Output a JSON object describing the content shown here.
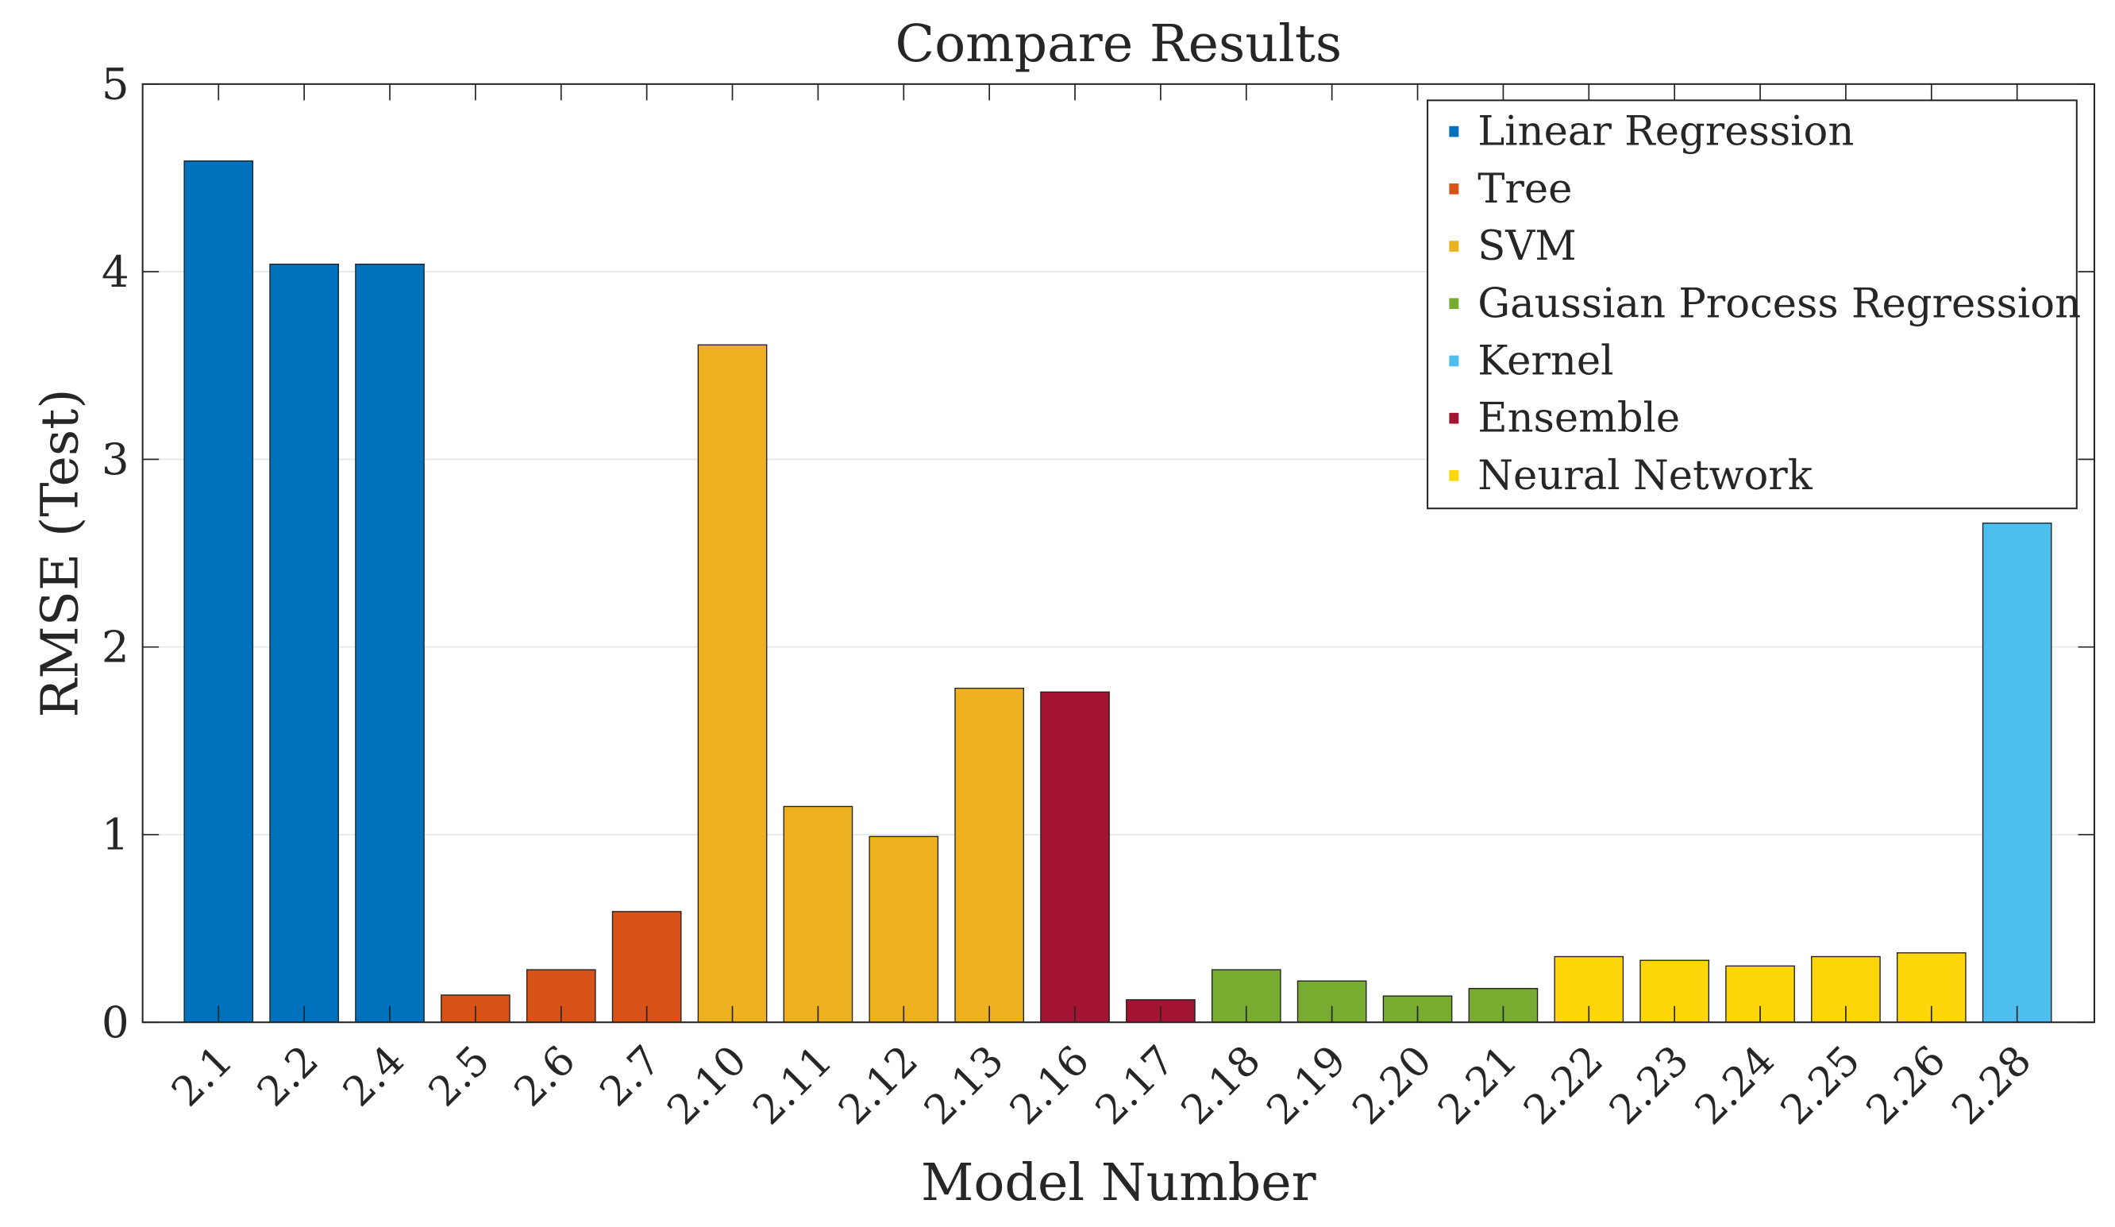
{
  "chart_data": {
    "type": "bar",
    "title": "Compare Results",
    "xlabel": "Model Number",
    "ylabel": "RMSE (Test)",
    "ylim": [
      0,
      5
    ],
    "yticks": [
      "0",
      "1",
      "2",
      "3",
      "4",
      "5"
    ],
    "grid": "y",
    "legend_placement": "top-right",
    "categories": [
      "2.1",
      "2.2",
      "2.4",
      "2.5",
      "2.6",
      "2.7",
      "2.10",
      "2.11",
      "2.12",
      "2.13",
      "2.16",
      "2.17",
      "2.18",
      "2.19",
      "2.20",
      "2.21",
      "2.22",
      "2.23",
      "2.24",
      "2.25",
      "2.26",
      "2.28"
    ],
    "values": [
      4.59,
      4.04,
      4.04,
      0.145,
      0.28,
      0.59,
      3.61,
      1.15,
      0.99,
      1.78,
      1.76,
      0.12,
      0.28,
      0.22,
      0.14,
      0.18,
      0.35,
      0.33,
      0.3,
      0.35,
      0.37,
      2.66
    ],
    "groups": [
      "Linear Regression",
      "Linear Regression",
      "Linear Regression",
      "Tree",
      "Tree",
      "Tree",
      "SVM",
      "SVM",
      "SVM",
      "SVM",
      "Ensemble",
      "Ensemble",
      "Gaussian Process Regression",
      "Gaussian Process Regression",
      "Gaussian Process Regression",
      "Gaussian Process Regression",
      "Neural Network",
      "Neural Network",
      "Neural Network",
      "Neural Network",
      "Neural Network",
      "Kernel"
    ],
    "series": [
      {
        "name": "Linear Regression",
        "color": "#0072BD"
      },
      {
        "name": "Tree",
        "color": "#D95319"
      },
      {
        "name": "SVM",
        "color": "#EDB120"
      },
      {
        "name": "Gaussian Process Regression",
        "color": "#77AC30"
      },
      {
        "name": "Kernel",
        "color": "#4DBEEE"
      },
      {
        "name": "Ensemble",
        "color": "#A2142F"
      },
      {
        "name": "Neural Network",
        "color": "#FFD60A"
      }
    ]
  }
}
